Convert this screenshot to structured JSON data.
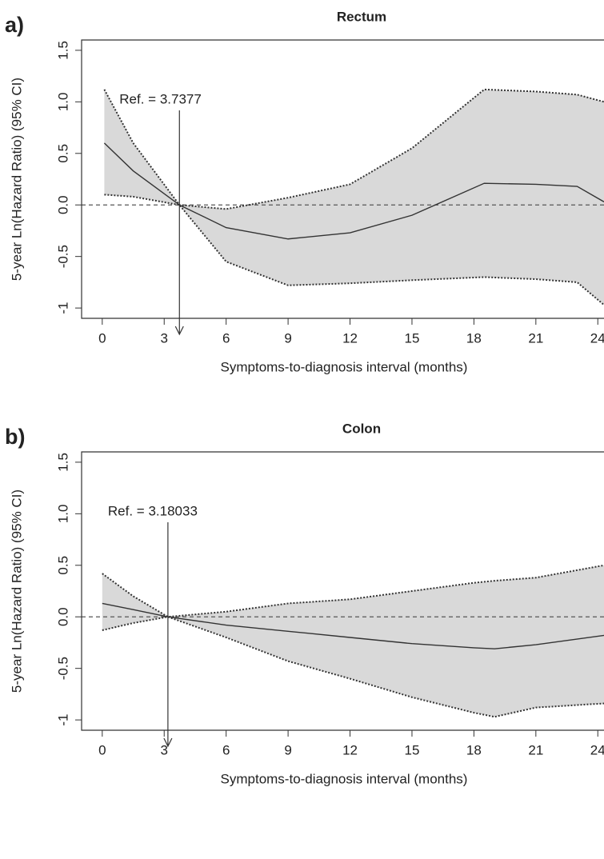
{
  "chart_data": [
    {
      "type": "line",
      "panel_label": "a)",
      "title": "Rectum",
      "xlabel": "Symptoms-to-diagnosis interval (months)",
      "ylabel": "5-year Ln(Hazard Ratio) (95% CI)",
      "ref": {
        "value": 3.7377,
        "label": "Ref.  = 3.7377"
      },
      "x": [
        0.1,
        1.5,
        3.7377,
        6,
        9,
        12,
        15,
        18.5,
        21,
        23,
        24.3
      ],
      "values": [
        0.6,
        0.33,
        0,
        -0.22,
        -0.33,
        -0.27,
        -0.1,
        0.21,
        0.2,
        0.18,
        0.03
      ],
      "upper": [
        1.12,
        0.6,
        0,
        -0.04,
        0.07,
        0.2,
        0.55,
        1.12,
        1.1,
        1.07,
        1.0
      ],
      "lower": [
        0.1,
        0.08,
        0,
        -0.55,
        -0.78,
        -0.76,
        -0.73,
        -0.7,
        -0.72,
        -0.75,
        -0.97
      ],
      "xlim": [
        -1,
        24.3
      ],
      "ylim": [
        -1.1,
        1.6
      ],
      "xticks": [
        0,
        3,
        6,
        9,
        12,
        15,
        18,
        21,
        24
      ],
      "yticks": [
        -1.0,
        -0.5,
        {
          "value": 0,
          "label": "0.0"
        },
        0.5,
        {
          "value": 1,
          "label": "1.0"
        },
        1.5
      ]
    },
    {
      "type": "line",
      "panel_label": "b)",
      "title": "Colon",
      "xlabel": "Symptoms-to-diagnosis interval (months)",
      "ylabel": "5-year Ln(Hazard Ratio) (95% CI)",
      "ref": {
        "value": 3.18033,
        "label": "Ref.  = 3.18033"
      },
      "x": [
        0,
        1.5,
        3.18033,
        6,
        9,
        12,
        15,
        18,
        19,
        21,
        24.3
      ],
      "values": [
        0.13,
        0.07,
        0,
        -0.08,
        -0.14,
        -0.2,
        -0.26,
        -0.3,
        -0.31,
        -0.27,
        -0.18
      ],
      "upper": [
        0.42,
        0.2,
        0,
        0.05,
        0.13,
        0.17,
        0.25,
        0.33,
        0.35,
        0.38,
        0.5
      ],
      "lower": [
        -0.13,
        -0.06,
        0,
        -0.2,
        -0.43,
        -0.6,
        -0.78,
        -0.93,
        -0.97,
        -0.88,
        -0.84
      ],
      "xlim": [
        -1,
        24.3
      ],
      "ylim": [
        -1.1,
        1.6
      ],
      "xticks": [
        0,
        3,
        6,
        9,
        12,
        15,
        18,
        21,
        24
      ],
      "yticks": [
        -1.0,
        -0.5,
        {
          "value": 0,
          "label": "0.0"
        },
        0.5,
        {
          "value": 1,
          "label": "1.0"
        },
        1.5
      ]
    }
  ]
}
